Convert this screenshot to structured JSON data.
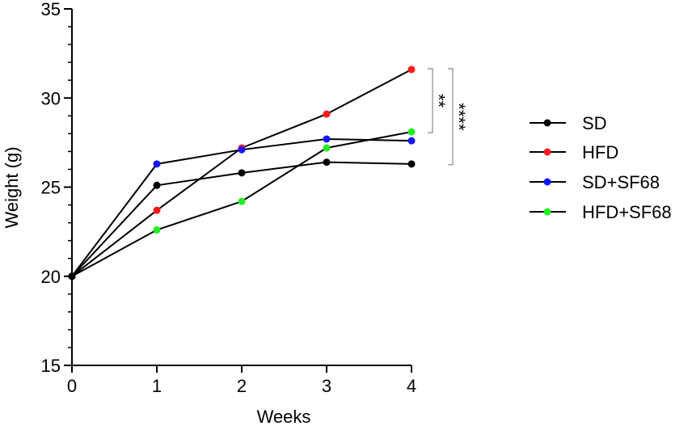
{
  "chart_data": {
    "type": "line",
    "title": "",
    "xlabel": "Weeks",
    "ylabel": "Weight (g)",
    "x": [
      0,
      1,
      2,
      3,
      4
    ],
    "xlim": [
      0,
      4
    ],
    "ylim": [
      15,
      35
    ],
    "xticks": [
      "0",
      "1",
      "2",
      "3",
      "4"
    ],
    "yticks": [
      "15",
      "20",
      "25",
      "30",
      "35"
    ],
    "ytick_values": [
      15,
      20,
      25,
      30,
      35
    ],
    "grid": false,
    "legend_position": "right",
    "series": [
      {
        "name": "SD",
        "color": "#000000",
        "values": [
          20.0,
          25.1,
          25.8,
          26.4,
          26.3
        ]
      },
      {
        "name": "HFD",
        "color": "#ff1a1a",
        "values": [
          20.0,
          23.7,
          27.2,
          29.1,
          31.6
        ]
      },
      {
        "name": "SD+SF68",
        "color": "#1414ff",
        "values": [
          20.0,
          26.3,
          27.1,
          27.7,
          27.6
        ]
      },
      {
        "name": "HFD+SF68",
        "color": "#22ee22",
        "values": [
          20.0,
          22.6,
          24.2,
          27.2,
          28.1
        ]
      }
    ],
    "annotations": [
      {
        "label": "**",
        "from_value": 31.6,
        "to_value": 28.1
      },
      {
        "label": "****",
        "from_value": 31.6,
        "to_value": 26.3
      }
    ]
  }
}
